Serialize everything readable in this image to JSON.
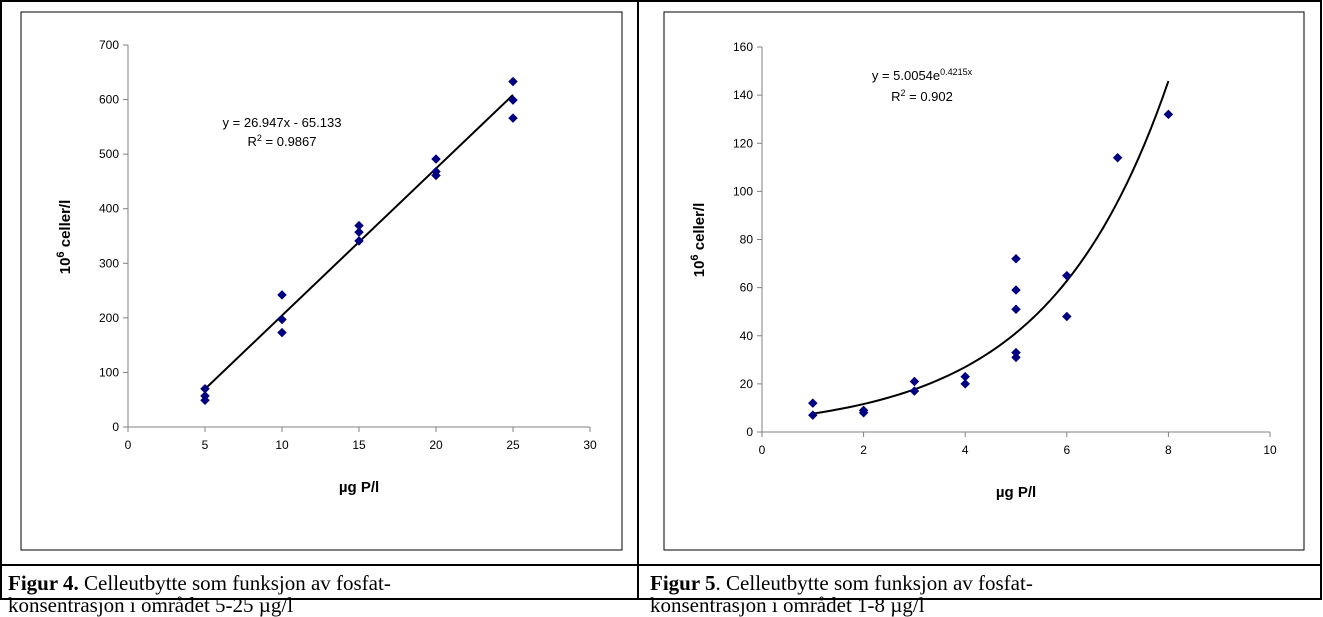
{
  "captions": [
    {
      "figure": "Figur 4.",
      "line1": "Celleutbytte som funksjon av fosfat-",
      "line2": "konsentrasjon i området 5-25 µg/l"
    },
    {
      "figure": "Figur 5",
      "line1": ". Celleutbytte som funksjon av fosfat-",
      "line2": "konsentrasjon i området 1-8 µg/l"
    }
  ],
  "chart_data": [
    {
      "type": "scatter",
      "xlabel": "µg P/l",
      "ylabel": "10^6 celler/l",
      "ylabel_base": "10",
      "ylabel_exp": "6",
      "ylabel_rest": " celler/l",
      "xlim": [
        0,
        30
      ],
      "ylim": [
        0,
        700
      ],
      "xticks": [
        0,
        5,
        10,
        15,
        20,
        25,
        30
      ],
      "yticks": [
        0,
        100,
        200,
        300,
        400,
        500,
        600,
        700
      ],
      "points": [
        [
          5,
          70
        ],
        [
          5,
          57
        ],
        [
          5,
          49
        ],
        [
          10,
          242
        ],
        [
          10,
          197
        ],
        [
          10,
          173
        ],
        [
          15,
          369
        ],
        [
          15,
          357
        ],
        [
          15,
          341
        ],
        [
          20,
          491
        ],
        [
          20,
          468
        ],
        [
          20,
          461
        ],
        [
          25,
          633
        ],
        [
          25,
          599
        ],
        [
          25,
          566
        ]
      ],
      "trendline": {
        "type": "linear",
        "slope": 26.947,
        "intercept": -65.133,
        "x_range": [
          5,
          25
        ]
      },
      "equation": "y = 26.947x - 65.133",
      "r2_base": "R",
      "r2_exp": "2",
      "r2_rest": " = 0.9867",
      "grid": false,
      "marker_color": "#000080"
    },
    {
      "type": "scatter",
      "xlabel": "µg P/l",
      "ylabel": "10^6 celler/l",
      "ylabel_base": "10",
      "ylabel_exp": "6",
      "ylabel_rest": " celler/l",
      "xlim": [
        0,
        10
      ],
      "ylim": [
        0,
        160
      ],
      "xticks": [
        0,
        2,
        4,
        6,
        8,
        10
      ],
      "yticks": [
        0,
        20,
        40,
        60,
        80,
        100,
        120,
        140,
        160
      ],
      "points": [
        [
          1,
          12
        ],
        [
          1,
          7
        ],
        [
          2,
          9
        ],
        [
          2,
          8
        ],
        [
          3,
          21
        ],
        [
          3,
          17
        ],
        [
          4,
          23
        ],
        [
          4,
          20
        ],
        [
          5,
          72
        ],
        [
          5,
          59
        ],
        [
          5,
          51
        ],
        [
          5,
          33
        ],
        [
          5,
          31
        ],
        [
          6,
          65
        ],
        [
          6,
          48
        ],
        [
          7,
          114
        ],
        [
          8,
          132
        ]
      ],
      "trendline": {
        "type": "exponential",
        "a": 5.0054,
        "b": 0.4215,
        "x_range": [
          1,
          8
        ]
      },
      "equation_base": "y = 5.0054e",
      "equation_exp": "0.4215x",
      "r2_base": "R",
      "r2_exp": "2",
      "r2_rest": " = 0.902",
      "grid": false,
      "marker_color": "#000080"
    }
  ]
}
